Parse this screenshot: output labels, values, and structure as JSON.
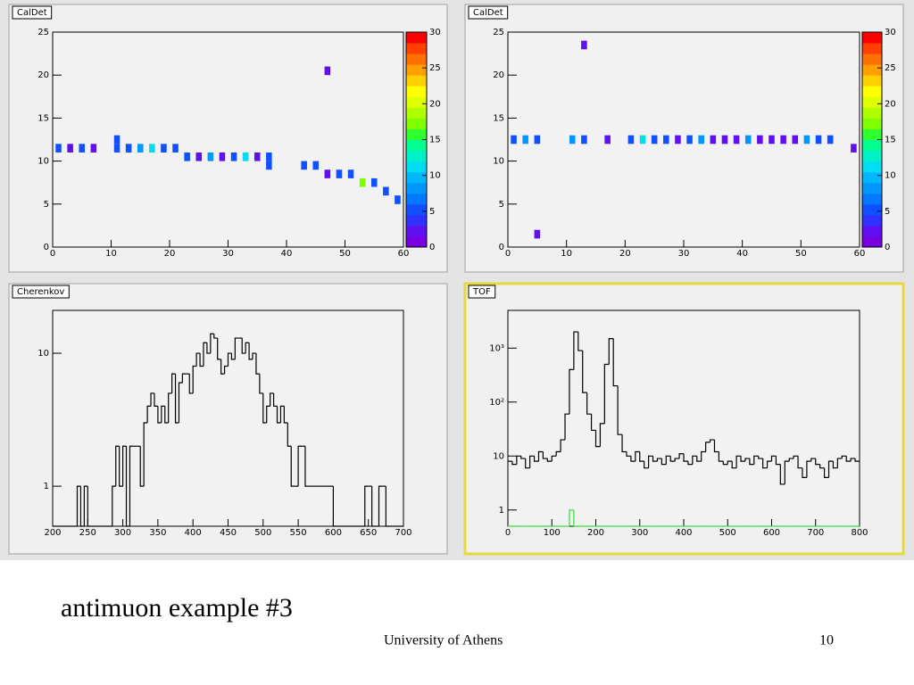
{
  "caption": "antimuon example #3",
  "footer": "University of Athens",
  "page_number": "10",
  "chart_data": [
    {
      "type": "heatmap",
      "title": "CalDet",
      "x": [
        1,
        3,
        5,
        7,
        11,
        11,
        13,
        15,
        17,
        19,
        21,
        23,
        25,
        27,
        29,
        31,
        33,
        35,
        37,
        37,
        43,
        45,
        47,
        49,
        51,
        53,
        55,
        57,
        59,
        47
      ],
      "y": [
        11.5,
        11.5,
        11.5,
        11.5,
        12.5,
        11.5,
        11.5,
        11.5,
        11.5,
        11.5,
        11.5,
        10.5,
        10.5,
        10.5,
        10.5,
        10.5,
        10.5,
        10.5,
        10.5,
        9.5,
        9.5,
        9.5,
        8.5,
        8.5,
        8.5,
        7.5,
        7.5,
        6.5,
        5.5,
        20.5
      ],
      "z": [
        5,
        2,
        5,
        2,
        5,
        5,
        5,
        8,
        11,
        5,
        5,
        5,
        2,
        8,
        2,
        5,
        11,
        2,
        5,
        5,
        5,
        5,
        2,
        5,
        5,
        17,
        5,
        5,
        5,
        2
      ],
      "palette": [
        "#7800e0",
        "#6010f0",
        "#3030ff",
        "#1050ff",
        "#0078ff",
        "#0098ff",
        "#00b8ff",
        "#00dcf0",
        "#00f0c8",
        "#00ff90",
        "#30ff30",
        "#80ff00",
        "#b0ff00",
        "#e0ff00",
        "#ffff00",
        "#ffd000",
        "#ffa000",
        "#ff7000",
        "#ff4000",
        "#ff0000"
      ],
      "xlim": [
        0,
        60
      ],
      "xticks": [
        0,
        10,
        20,
        30,
        40,
        50,
        60
      ],
      "ylim": [
        0,
        25
      ],
      "yticks": [
        0,
        5,
        10,
        15,
        20,
        25
      ],
      "zlim": [
        0,
        30
      ],
      "zticks": [
        0,
        5,
        10,
        15,
        20,
        25,
        30
      ]
    },
    {
      "type": "heatmap",
      "title": "CalDet",
      "x": [
        1,
        3,
        5,
        11,
        13,
        17,
        21,
        23,
        25,
        27,
        29,
        31,
        33,
        35,
        37,
        39,
        41,
        43,
        45,
        47,
        49,
        51,
        53,
        55,
        59,
        5,
        13
      ],
      "y": [
        12.5,
        12.5,
        12.5,
        12.5,
        12.5,
        12.5,
        12.5,
        12.5,
        12.5,
        12.5,
        12.5,
        12.5,
        12.5,
        12.5,
        12.5,
        12.5,
        12.5,
        12.5,
        12.5,
        12.5,
        12.5,
        12.5,
        12.5,
        12.5,
        11.5,
        1.5,
        23.5
      ],
      "z": [
        5,
        8,
        5,
        8,
        5,
        2,
        5,
        11,
        5,
        5,
        2,
        5,
        8,
        2,
        2,
        2,
        8,
        2,
        2,
        2,
        2,
        8,
        5,
        5,
        2,
        2,
        2
      ],
      "palette": [
        "#7800e0",
        "#6010f0",
        "#3030ff",
        "#1050ff",
        "#0078ff",
        "#0098ff",
        "#00b8ff",
        "#00dcf0",
        "#00f0c8",
        "#00ff90",
        "#30ff30",
        "#80ff00",
        "#b0ff00",
        "#e0ff00",
        "#ffff00",
        "#ffd000",
        "#ffa000",
        "#ff7000",
        "#ff4000",
        "#ff0000"
      ],
      "xlim": [
        0,
        60
      ],
      "xticks": [
        0,
        10,
        20,
        30,
        40,
        50,
        60
      ],
      "ylim": [
        0,
        25
      ],
      "yticks": [
        0,
        5,
        10,
        15,
        20,
        25
      ],
      "zlim": [
        0,
        30
      ],
      "zticks": [
        0,
        5,
        10,
        15,
        20,
        25,
        30
      ]
    },
    {
      "type": "histogram",
      "title": "Cherenkov",
      "log_y": true,
      "bins": [
        200,
        205,
        210,
        215,
        220,
        225,
        230,
        235,
        240,
        245,
        250,
        255,
        260,
        265,
        270,
        275,
        280,
        285,
        290,
        295,
        300,
        305,
        310,
        315,
        320,
        325,
        330,
        335,
        340,
        345,
        350,
        355,
        360,
        365,
        370,
        375,
        380,
        385,
        390,
        395,
        400,
        405,
        410,
        415,
        420,
        425,
        430,
        435,
        440,
        445,
        450,
        455,
        460,
        465,
        470,
        475,
        480,
        485,
        490,
        495,
        500,
        505,
        510,
        515,
        520,
        525,
        530,
        535,
        540,
        545,
        550,
        555,
        560,
        565,
        570,
        575,
        580,
        585,
        590,
        595,
        600,
        605,
        610,
        615,
        620,
        625,
        630,
        635,
        640,
        645,
        650,
        655,
        660,
        665,
        670,
        675,
        680,
        685,
        690,
        695,
        700
      ],
      "series": [
        {
          "color": "#000000",
          "values": [
            0,
            0,
            0,
            0,
            0,
            0,
            0,
            1,
            0,
            1,
            0,
            0,
            0,
            0,
            0,
            0,
            0,
            1,
            2,
            1,
            2,
            0,
            2,
            2,
            2,
            1,
            3,
            4,
            5,
            4,
            3,
            4,
            3,
            5,
            7,
            3,
            6,
            7,
            7,
            5,
            8,
            10,
            8,
            12,
            10,
            14,
            13,
            9,
            7,
            8,
            10,
            9,
            13,
            13,
            10,
            12,
            9,
            10,
            7,
            5,
            3,
            4,
            5,
            4,
            3,
            4,
            3,
            2,
            1,
            1,
            2,
            2,
            1,
            1,
            1,
            1,
            1,
            1,
            1,
            1,
            0,
            0,
            0,
            0,
            0,
            0,
            0,
            0,
            0,
            1,
            1,
            0,
            0,
            1,
            1,
            0,
            0,
            0,
            0,
            0
          ]
        }
      ],
      "xlim": [
        200,
        700
      ],
      "xticks": [
        200,
        250,
        300,
        350,
        400,
        450,
        500,
        550,
        600,
        650,
        700
      ],
      "ylim": [
        0.5,
        21
      ],
      "yticks": [
        1,
        10
      ]
    },
    {
      "type": "histogram",
      "title": "TOF",
      "log_y": true,
      "bins": [
        0,
        10,
        20,
        30,
        40,
        50,
        60,
        70,
        80,
        90,
        100,
        110,
        120,
        130,
        140,
        150,
        160,
        170,
        180,
        190,
        200,
        210,
        220,
        230,
        240,
        250,
        260,
        270,
        280,
        290,
        300,
        310,
        320,
        330,
        340,
        350,
        360,
        370,
        380,
        390,
        400,
        410,
        420,
        430,
        440,
        450,
        460,
        470,
        480,
        490,
        500,
        510,
        520,
        530,
        540,
        550,
        560,
        570,
        580,
        590,
        600,
        610,
        620,
        630,
        640,
        650,
        660,
        670,
        680,
        690,
        700,
        710,
        720,
        730,
        740,
        750,
        760,
        770,
        780,
        790,
        800
      ],
      "series": [
        {
          "color": "#000000",
          "values": [
            8,
            7,
            10,
            9,
            6,
            10,
            8,
            12,
            9,
            8,
            10,
            12,
            20,
            60,
            400,
            2000,
            900,
            150,
            60,
            30,
            15,
            40,
            500,
            1500,
            200,
            25,
            12,
            10,
            8,
            12,
            8,
            6,
            10,
            8,
            9,
            7,
            10,
            8,
            9,
            11,
            8,
            7,
            10,
            8,
            12,
            18,
            20,
            12,
            8,
            7,
            8,
            6,
            10,
            8,
            9,
            7,
            10,
            9,
            6,
            8,
            10,
            7,
            3,
            8,
            9,
            10,
            6,
            4,
            8,
            9,
            7,
            6,
            4,
            8,
            6,
            9,
            10,
            8,
            9,
            8
          ]
        },
        {
          "color": "#33dd33",
          "values": [
            0,
            0,
            0,
            0,
            0,
            0,
            0,
            0,
            0,
            0,
            0,
            0,
            0,
            0,
            1,
            0,
            0,
            0,
            0,
            0,
            0,
            0,
            0,
            0,
            0,
            0,
            0,
            0,
            0,
            0,
            0,
            0,
            0,
            0,
            0,
            0,
            0,
            0,
            0,
            0,
            0,
            0,
            0,
            0,
            0,
            0,
            0,
            0,
            0,
            0,
            0,
            0,
            0,
            0,
            0,
            0,
            0,
            0,
            0,
            0,
            0,
            0,
            0,
            0,
            0,
            0,
            0,
            0,
            0,
            0,
            0,
            0,
            0,
            0,
            0,
            0,
            0,
            0,
            0,
            0
          ]
        }
      ],
      "xlim": [
        0,
        800
      ],
      "xticks": [
        0,
        100,
        200,
        300,
        400,
        500,
        600,
        700,
        800
      ],
      "ylim": [
        0.5,
        5000
      ],
      "yticks": [
        1,
        10,
        {
          "value": 100,
          "label": "10²"
        },
        {
          "value": 1000,
          "label": "10³"
        }
      ]
    }
  ]
}
